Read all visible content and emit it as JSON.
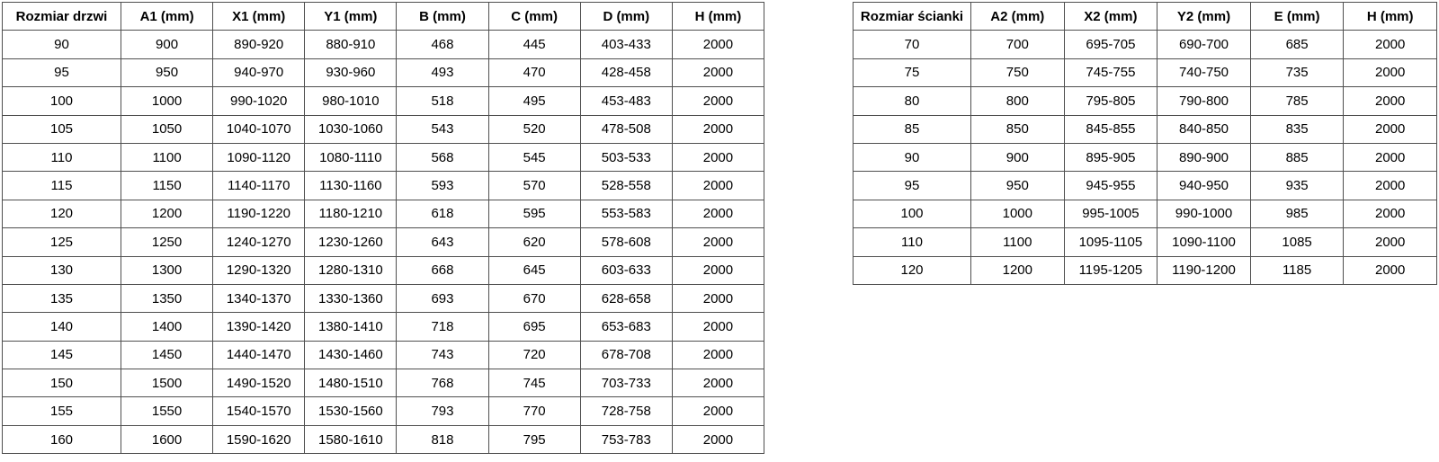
{
  "colors": {
    "background": "#ffffff",
    "border": "#4f4f4f",
    "text": "#000000"
  },
  "tables": [
    {
      "name": "door-size-table",
      "title_column": "Rozmiar drzwi",
      "headers": [
        "Rozmiar drzwi",
        "A1 (mm)",
        "X1 (mm)",
        "Y1 (mm)",
        "B (mm)",
        "C (mm)",
        "D (mm)",
        "H (mm)"
      ],
      "rows": [
        [
          "90",
          "900",
          "890-920",
          "880-910",
          "468",
          "445",
          "403-433",
          "2000"
        ],
        [
          "95",
          "950",
          "940-970",
          "930-960",
          "493",
          "470",
          "428-458",
          "2000"
        ],
        [
          "100",
          "1000",
          "990-1020",
          "980-1010",
          "518",
          "495",
          "453-483",
          "2000"
        ],
        [
          "105",
          "1050",
          "1040-1070",
          "1030-1060",
          "543",
          "520",
          "478-508",
          "2000"
        ],
        [
          "110",
          "1100",
          "1090-1120",
          "1080-1110",
          "568",
          "545",
          "503-533",
          "2000"
        ],
        [
          "115",
          "1150",
          "1140-1170",
          "1130-1160",
          "593",
          "570",
          "528-558",
          "2000"
        ],
        [
          "120",
          "1200",
          "1190-1220",
          "1180-1210",
          "618",
          "595",
          "553-583",
          "2000"
        ],
        [
          "125",
          "1250",
          "1240-1270",
          "1230-1260",
          "643",
          "620",
          "578-608",
          "2000"
        ],
        [
          "130",
          "1300",
          "1290-1320",
          "1280-1310",
          "668",
          "645",
          "603-633",
          "2000"
        ],
        [
          "135",
          "1350",
          "1340-1370",
          "1330-1360",
          "693",
          "670",
          "628-658",
          "2000"
        ],
        [
          "140",
          "1400",
          "1390-1420",
          "1380-1410",
          "718",
          "695",
          "653-683",
          "2000"
        ],
        [
          "145",
          "1450",
          "1440-1470",
          "1430-1460",
          "743",
          "720",
          "678-708",
          "2000"
        ],
        [
          "150",
          "1500",
          "1490-1520",
          "1480-1510",
          "768",
          "745",
          "703-733",
          "2000"
        ],
        [
          "155",
          "1550",
          "1540-1570",
          "1530-1560",
          "793",
          "770",
          "728-758",
          "2000"
        ],
        [
          "160",
          "1600",
          "1590-1620",
          "1580-1610",
          "818",
          "795",
          "753-783",
          "2000"
        ]
      ]
    },
    {
      "name": "wall-size-table",
      "title_column": "Rozmiar ścianki",
      "headers": [
        "Rozmiar ścianki",
        "A2 (mm)",
        "X2 (mm)",
        "Y2 (mm)",
        "E (mm)",
        "H (mm)"
      ],
      "rows": [
        [
          "70",
          "700",
          "695-705",
          "690-700",
          "685",
          "2000"
        ],
        [
          "75",
          "750",
          "745-755",
          "740-750",
          "735",
          "2000"
        ],
        [
          "80",
          "800",
          "795-805",
          "790-800",
          "785",
          "2000"
        ],
        [
          "85",
          "850",
          "845-855",
          "840-850",
          "835",
          "2000"
        ],
        [
          "90",
          "900",
          "895-905",
          "890-900",
          "885",
          "2000"
        ],
        [
          "95",
          "950",
          "945-955",
          "940-950",
          "935",
          "2000"
        ],
        [
          "100",
          "1000",
          "995-1005",
          "990-1000",
          "985",
          "2000"
        ],
        [
          "110",
          "1100",
          "1095-1105",
          "1090-1100",
          "1085",
          "2000"
        ],
        [
          "120",
          "1200",
          "1195-1205",
          "1190-1200",
          "1185",
          "2000"
        ]
      ]
    }
  ]
}
